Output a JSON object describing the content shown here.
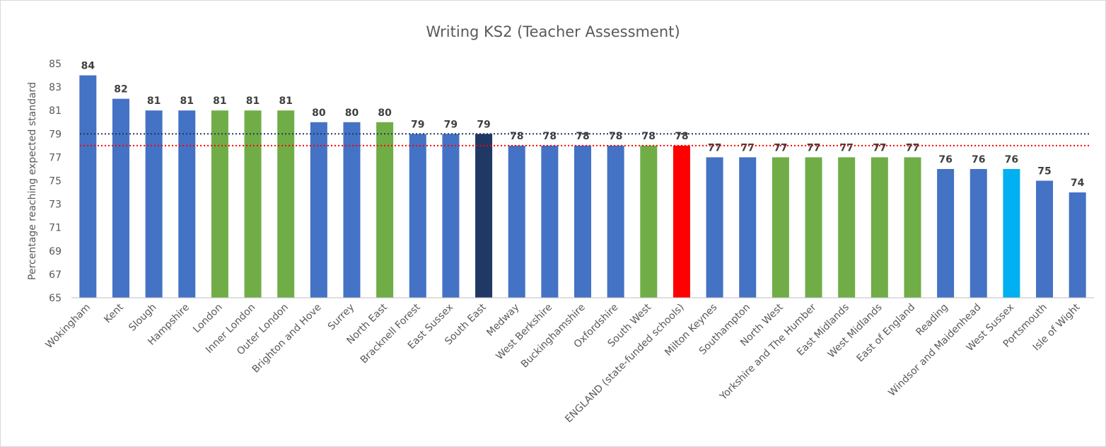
{
  "chart_data": {
    "type": "bar",
    "title": "Writing KS2 (Teacher Assessment)",
    "y_label": "Percentage reaching expected standard",
    "categories": [
      "Wokingham",
      "Kent",
      "Slough",
      "Hampshire",
      "London",
      "Inner London",
      "Outer London",
      "Brighton and Hove",
      "Surrey",
      "North East",
      "Bracknell Forest",
      "East Sussex",
      "South East",
      "Medway",
      "West Berkshire",
      "Buckinghamshire",
      "Oxfordshire",
      "South West",
      "ENGLAND (state-funded schools)",
      "Milton Keynes",
      "Southampton",
      "North West",
      "Yorkshire and The Humber",
      "East Midlands",
      "West Midlands",
      "East of England",
      "Reading",
      "Windsor and Maidenhead",
      "West Sussex",
      "Portsmouth",
      "Isle of Wight"
    ],
    "values": [
      84,
      82,
      81,
      81,
      81,
      81,
      81,
      80,
      80,
      80,
      79,
      79,
      79,
      78,
      78,
      78,
      78,
      78,
      78,
      77,
      77,
      77,
      77,
      77,
      77,
      77,
      76,
      76,
      76,
      75,
      74
    ],
    "colors": [
      "#4472c4",
      "#4472c4",
      "#4472c4",
      "#4472c4",
      "#70ad47",
      "#70ad47",
      "#70ad47",
      "#4472c4",
      "#4472c4",
      "#70ad47",
      "#4472c4",
      "#4472c4",
      "#203864",
      "#4472c4",
      "#4472c4",
      "#4472c4",
      "#4472c4",
      "#70ad47",
      "#ff0000",
      "#4472c4",
      "#4472c4",
      "#70ad47",
      "#70ad47",
      "#70ad47",
      "#70ad47",
      "#70ad47",
      "#4472c4",
      "#4472c4",
      "#00b0f0",
      "#4472c4",
      "#4472c4"
    ],
    "reference_lines": [
      {
        "value": 79,
        "color": "#203864"
      },
      {
        "value": 78,
        "color": "#ff0000"
      }
    ],
    "ylim": [
      65,
      85
    ],
    "yticks": [
      65,
      67,
      69,
      71,
      73,
      75,
      77,
      79,
      81,
      83,
      85
    ],
    "grid": false
  }
}
